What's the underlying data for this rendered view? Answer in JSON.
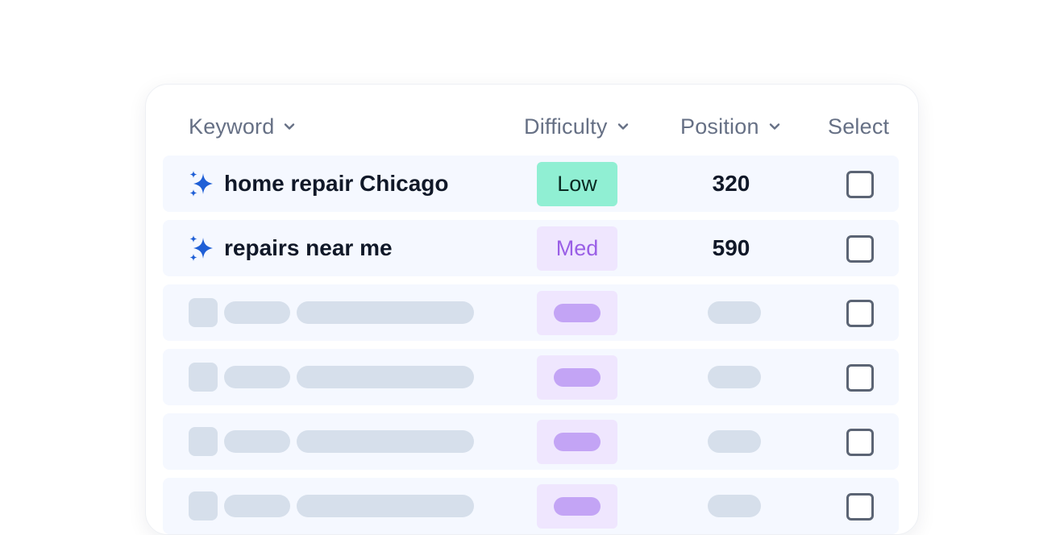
{
  "table": {
    "headers": {
      "keyword": "Keyword",
      "difficulty": "Difficulty",
      "position": "Position",
      "select": "Select"
    },
    "rows": [
      {
        "keyword": "home repair Chicago",
        "difficulty": "Low",
        "position": "320",
        "icon": "sparkle-icon"
      },
      {
        "keyword": "repairs near me",
        "difficulty": "Med",
        "position": "590",
        "icon": "sparkle-icon"
      }
    ],
    "placeholder_rows": 4
  },
  "colors": {
    "accent_sparkle": "#1f5fd6",
    "badge_low": "#90efd3",
    "badge_med": "#efe6fe",
    "badge_med_text": "#9a5fe6",
    "row_bg": "#f5f8ff",
    "skeleton": "#d6dfeb"
  }
}
